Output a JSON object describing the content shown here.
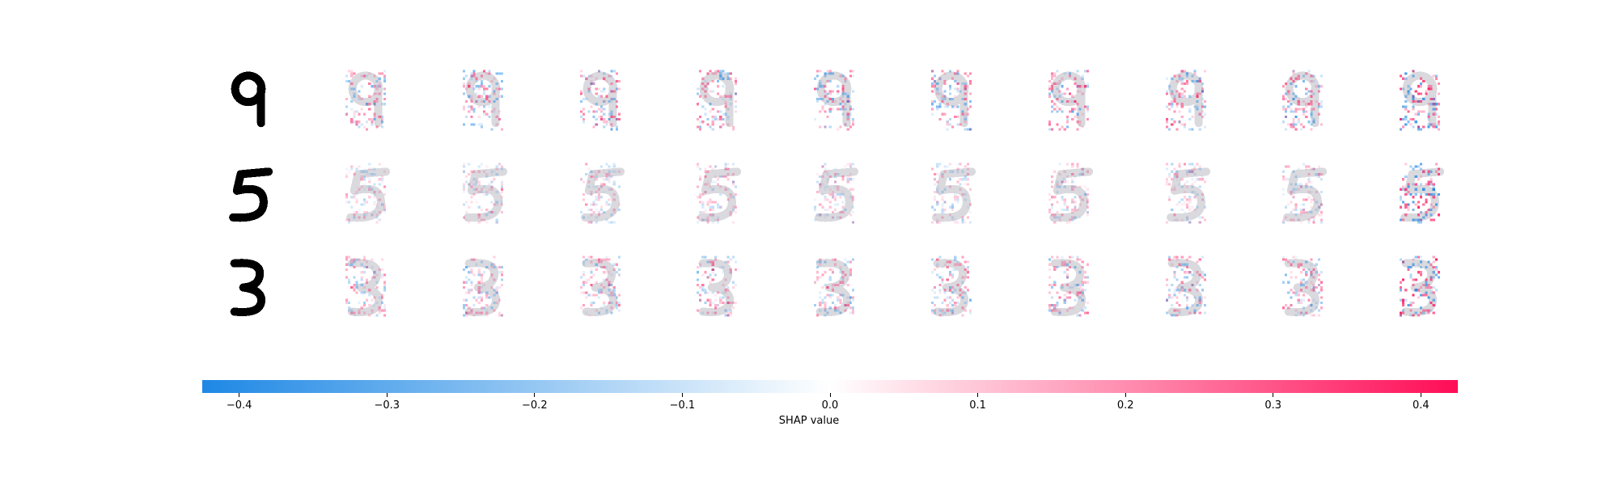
{
  "chart_data": {
    "type": "heatmap",
    "rows": [
      {
        "digit": "9"
      },
      {
        "digit": "5"
      },
      {
        "digit": "3"
      }
    ],
    "explanations_per_row": 10,
    "colorbar": {
      "label": "SHAP value",
      "range": [
        -0.425,
        0.425
      ],
      "ticks": [
        -0.4,
        -0.3,
        -0.2,
        -0.1,
        0.0,
        0.1,
        0.2,
        0.3,
        0.4
      ],
      "tick_labels": [
        "−0.4",
        "−0.3",
        "−0.2",
        "−0.1",
        "0.0",
        "0.1",
        "0.2",
        "0.3",
        "0.4"
      ],
      "negative_color": "#1E88E5",
      "zero_color": "#FFFFFF",
      "positive_color": "#FF0D57"
    }
  }
}
